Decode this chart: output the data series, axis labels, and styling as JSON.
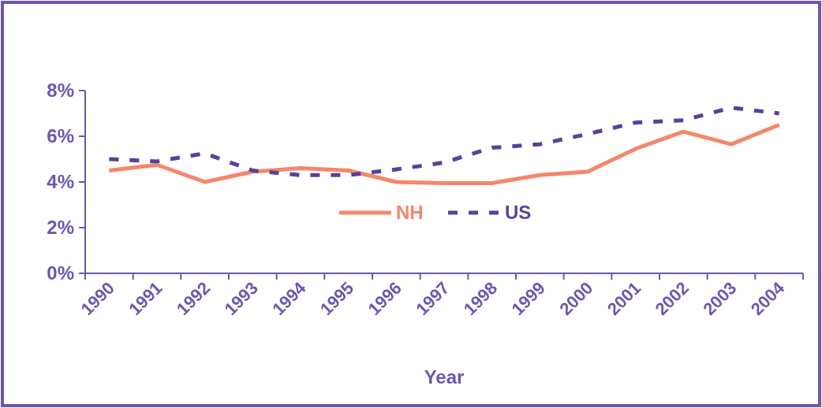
{
  "chart_data": {
    "type": "line",
    "xlabel": "Year",
    "categories": [
      "1990",
      "1991",
      "1992",
      "1993",
      "1994",
      "1995",
      "1996",
      "1997",
      "1998",
      "1999",
      "2000",
      "2001",
      "2002",
      "2003",
      "2004"
    ],
    "series": [
      {
        "name": "NH",
        "color": "#f4876a",
        "line_style": "solid",
        "values": [
          4.5,
          4.75,
          4.0,
          4.45,
          4.6,
          4.5,
          4.0,
          3.95,
          3.95,
          4.3,
          4.45,
          5.45,
          6.2,
          5.65,
          6.5
        ]
      },
      {
        "name": "US",
        "color": "#5b3f9c",
        "line_style": "dashed",
        "values": [
          5.0,
          4.9,
          5.25,
          4.5,
          4.3,
          4.3,
          4.55,
          4.85,
          5.5,
          5.65,
          6.1,
          6.6,
          6.7,
          7.25,
          7.0
        ]
      }
    ],
    "ylim": [
      0,
      8
    ],
    "yticks": [
      {
        "value": 0,
        "label": "0%"
      },
      {
        "value": 2,
        "label": "2%"
      },
      {
        "value": 4,
        "label": "4%"
      },
      {
        "value": 6,
        "label": "6%"
      },
      {
        "value": 8,
        "label": "8%"
      }
    ],
    "grid": false,
    "legend": "center",
    "marker": "none"
  }
}
